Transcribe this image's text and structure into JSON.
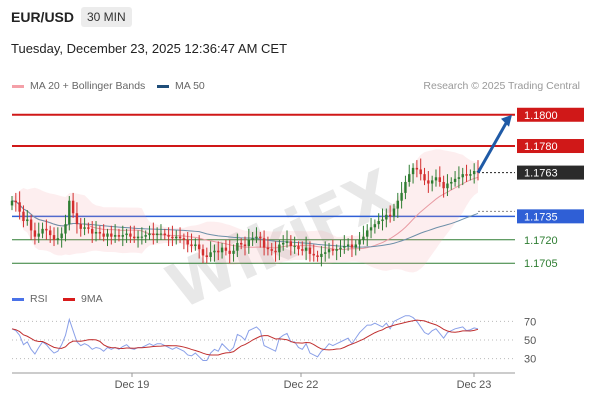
{
  "header": {
    "symbol": "EUR/USD",
    "timeframe": "30 MIN",
    "datetime": "Tuesday, December 23, 2025 12:36:47 AM CET"
  },
  "legend": {
    "ma20": {
      "label": "MA 20 + Bollinger Bands",
      "color": "#f4a0a8"
    },
    "ma50": {
      "label": "MA 50",
      "color": "#1f4e79"
    },
    "rsi": {
      "label": "RSI",
      "color": "#4a72e8"
    },
    "ma9": {
      "label": "9MA",
      "color": "#d81b1b"
    }
  },
  "credit": "Research © 2025 Trading Central",
  "watermark": "WikiFX",
  "levels": [
    {
      "value": 1.18,
      "label": "1.1800",
      "style": "resistance"
    },
    {
      "value": 1.178,
      "label": "1.1780",
      "style": "resistance"
    },
    {
      "value": 1.1763,
      "label": "1.1763",
      "style": "last"
    },
    {
      "value": 1.1735,
      "label": "1.1735",
      "style": "pivot"
    },
    {
      "value": 1.172,
      "label": "1.1720",
      "style": "support"
    },
    {
      "value": 1.1705,
      "label": "1.1705",
      "style": "support"
    }
  ],
  "x_labels": [
    "Dec 19",
    "Dec 22",
    "Dec 23"
  ],
  "rsi_labels": [
    "70",
    "50",
    "30"
  ],
  "colors": {
    "up": "#2e7d32",
    "down": "#d32f2f",
    "resistance": "#d01818",
    "pivot": "#2f5fd6",
    "support": "#2e7d32",
    "last_bg": "#2b2b2b",
    "arrow": "#1f5aa6"
  },
  "chart_data": {
    "type": "candlestick",
    "ylim": [
      1.1693,
      1.1812
    ],
    "projection": {
      "from": 1.1763,
      "to": 1.18
    },
    "close": [
      1.1745,
      1.1744,
      1.1738,
      1.1732,
      1.1733,
      1.1726,
      1.1722,
      1.1724,
      1.1727,
      1.1726,
      1.1723,
      1.172,
      1.1721,
      1.1724,
      1.173,
      1.1745,
      1.1737,
      1.173,
      1.1727,
      1.1728,
      1.1727,
      1.1724,
      1.1725,
      1.1724,
      1.1722,
      1.1724,
      1.1722,
      1.1723,
      1.1722,
      1.1723,
      1.1724,
      1.1722,
      1.1721,
      1.1722,
      1.1722,
      1.1723,
      1.1724,
      1.1723,
      1.1724,
      1.1724,
      1.1723,
      1.1722,
      1.1721,
      1.1722,
      1.1721,
      1.172,
      1.1717,
      1.1716,
      1.1717,
      1.1714,
      1.171,
      1.1709,
      1.1712,
      1.1713,
      1.1712,
      1.1715,
      1.1713,
      1.1711,
      1.1713,
      1.1718,
      1.1717,
      1.1716,
      1.172,
      1.1721,
      1.1722,
      1.1721,
      1.1715,
      1.1714,
      1.1713,
      1.1712,
      1.1717,
      1.1718,
      1.1719,
      1.1716,
      1.1716,
      1.1714,
      1.1713,
      1.1715,
      1.1711,
      1.171,
      1.1709,
      1.1711,
      1.1712,
      1.1714,
      1.1713,
      1.1714,
      1.1715,
      1.1716,
      1.1717,
      1.1715,
      1.1717,
      1.172,
      1.1722,
      1.1726,
      1.1728,
      1.173,
      1.1732,
      1.1733,
      1.1736,
      1.1735,
      1.174,
      1.1745,
      1.175,
      1.1757,
      1.1762,
      1.1766,
      1.1765,
      1.1762,
      1.1758,
      1.1756,
      1.1758,
      1.176,
      1.1757,
      1.1753,
      1.1756,
      1.1757,
      1.1759,
      1.176,
      1.1762,
      1.1761,
      1.1762,
      1.1764,
      1.1763
    ],
    "rsi": [
      62,
      60,
      55,
      45,
      48,
      40,
      35,
      42,
      48,
      45,
      40,
      36,
      38,
      45,
      55,
      72,
      60,
      48,
      44,
      46,
      44,
      40,
      42,
      41,
      38,
      42,
      40,
      42,
      40,
      43,
      45,
      41,
      40,
      42,
      42,
      44,
      46,
      44,
      46,
      46,
      44,
      42,
      40,
      42,
      40,
      38,
      34,
      33,
      36,
      32,
      28,
      28,
      36,
      40,
      38,
      46,
      42,
      38,
      42,
      56,
      54,
      50,
      60,
      62,
      64,
      60,
      44,
      42,
      40,
      38,
      52,
      55,
      57,
      48,
      48,
      42,
      40,
      46,
      36,
      34,
      32,
      38,
      41,
      46,
      44,
      46,
      48,
      50,
      52,
      46,
      52,
      58,
      62,
      66,
      66,
      68,
      66,
      64,
      68,
      62,
      70,
      72,
      74,
      76,
      76,
      74,
      70,
      64,
      58,
      56,
      60,
      62,
      57,
      52,
      58,
      60,
      62,
      63,
      64,
      60,
      61,
      63,
      62
    ],
    "rsi_ylim": [
      20,
      80
    ]
  }
}
